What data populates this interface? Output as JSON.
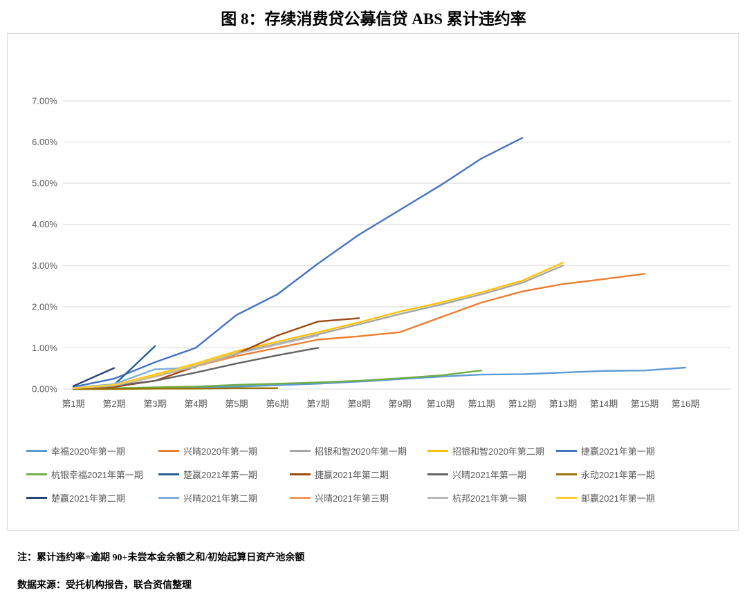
{
  "title": "图 8：存续消费贷公募信贷 ABS 累计违约率",
  "note": "注：累计违约率=逾期 90+未尝本金余额之和/初始起算日资产池余额",
  "source": "数据来源：受托机构报告，联合资信整理",
  "chart_data": {
    "type": "line",
    "title": "图 8：存续消费贷公募信贷 ABS 累计违约率",
    "xlabel": "",
    "ylabel": "",
    "ylim": [
      0,
      7
    ],
    "ytick_step": 1,
    "yticks": [
      "0.00%",
      "1.00%",
      "2.00%",
      "3.00%",
      "4.00%",
      "5.00%",
      "6.00%",
      "7.00%"
    ],
    "grid": true,
    "legend_position": "bottom",
    "categories": [
      "第1期",
      "第2期",
      "第3期",
      "第4期",
      "第5期",
      "第6期",
      "第7期",
      "第8期",
      "第9期",
      "第10期",
      "第11期",
      "第12期",
      "第13期",
      "第14期",
      "第15期",
      "第16期"
    ],
    "unit": "percent",
    "series": [
      {
        "name": "幸福2020年第一期",
        "color": "#5B9BD5",
        "values": [
          0.0,
          0.01,
          0.02,
          0.04,
          0.06,
          0.09,
          0.13,
          0.18,
          0.24,
          0.3,
          0.35,
          0.36,
          0.4,
          0.44,
          0.45,
          0.52
        ]
      },
      {
        "name": "兴晴2020年第一期",
        "color": "#ED7D31",
        "values": [
          0.02,
          0.08,
          0.3,
          0.55,
          0.8,
          1.0,
          1.2,
          1.28,
          1.38,
          1.74,
          2.1,
          2.37,
          2.55,
          2.67,
          2.8
        ]
      },
      {
        "name": "招银和智2020年第一期",
        "color": "#A5A5A5",
        "values": [
          0.02,
          0.09,
          0.32,
          0.58,
          0.88,
          1.1,
          1.33,
          1.57,
          1.82,
          2.05,
          2.3,
          2.58,
          3.0
        ]
      },
      {
        "name": "招银和智2020年第二期",
        "color": "#FFC000",
        "values": [
          0.02,
          0.1,
          0.35,
          0.62,
          0.92,
          1.15,
          1.38,
          1.62,
          1.88,
          2.1,
          2.35,
          2.63,
          3.07
        ]
      },
      {
        "name": "捷赢2021年第一期",
        "color": "#4472C4",
        "values": [
          0.05,
          0.25,
          0.65,
          1.0,
          1.8,
          2.3,
          3.05,
          3.75,
          4.35,
          4.95,
          5.6,
          6.1
        ]
      },
      {
        "name": "杭银幸福2021年第一期",
        "color": "#70AD47",
        "values": [
          0.01,
          0.02,
          0.04,
          0.06,
          0.1,
          0.13,
          0.16,
          0.2,
          0.26,
          0.33,
          0.45
        ]
      },
      {
        "name": "楚赢2021年第一期",
        "color": "#255E91",
        "values": [
          0.03,
          0.1,
          1.04
        ]
      },
      {
        "name": "捷赢2021年第二期",
        "color": "#9E480E",
        "values": [
          0.02,
          0.05,
          0.2,
          0.55,
          0.85,
          1.3,
          1.64,
          1.72
        ]
      },
      {
        "name": "兴晴2021年第一期",
        "color": "#636363",
        "values": [
          0.02,
          0.08,
          0.2,
          0.4,
          0.62,
          0.82,
          1.0
        ]
      },
      {
        "name": "永动2021年第一期",
        "color": "#997300",
        "values": [
          0.0,
          0.0,
          0.01,
          0.01,
          0.02,
          0.02
        ]
      },
      {
        "name": "楚赢2021年第二期",
        "color": "#264478",
        "values": [
          0.07,
          0.51
        ]
      },
      {
        "name": "兴晴2021年第二期",
        "color": "#7CAFDD",
        "values": [
          0.03,
          0.12,
          0.48,
          0.52
        ]
      },
      {
        "name": "兴晴2021年第三期",
        "color": "#F1975A",
        "values": [
          0.02,
          0.08,
          0.3,
          0.55,
          0.8
        ]
      },
      {
        "name": "杭邦2021年第一期",
        "color": "#B7B7B7",
        "values": [
          0.02,
          0.08,
          0.3,
          0.56,
          0.86,
          1.08,
          1.3
        ]
      },
      {
        "name": "邮赢2021年第一期",
        "color": "#FFCD33",
        "values": [
          0.02,
          0.1,
          0.33,
          0.6,
          0.9
        ]
      }
    ]
  },
  "style": {
    "grid_color": "#D9D9D9",
    "tick_label_color": "#595959"
  }
}
